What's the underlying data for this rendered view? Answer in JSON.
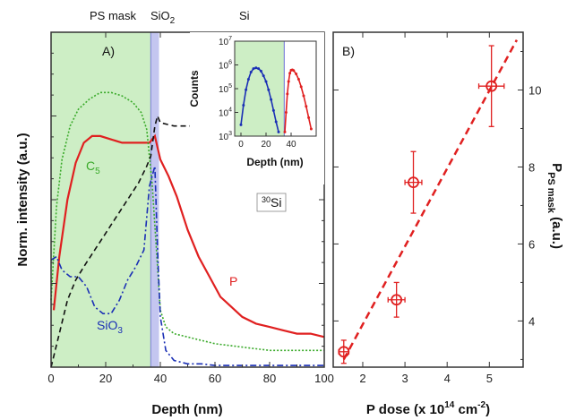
{
  "chart_data": [
    {
      "type": "line",
      "panel_label": "A)",
      "xlabel": "Depth (nm)",
      "ylabel": "Norm. intensity (a.u.)",
      "xlim": [
        0,
        100
      ],
      "x_ticks": [
        "0",
        "20",
        "40",
        "60",
        "80",
        "100"
      ],
      "y_tick_labels_shown": false,
      "regions": {
        "ps_mask": {
          "label": "PS mask",
          "x": [
            0,
            36.5
          ],
          "color": "#cdeec5"
        },
        "sio2": {
          "label": "SiO",
          "sub": "2",
          "x": [
            36.5,
            39.5
          ],
          "color": "#c4c6f0"
        },
        "si": {
          "label": "Si"
        }
      },
      "series": [
        {
          "name": "P",
          "color": "#e02020",
          "style": "solid",
          "x": [
            1,
            3,
            6,
            9,
            12,
            15,
            18,
            22,
            26,
            30,
            33,
            36,
            38,
            40,
            43,
            46,
            50,
            54,
            58,
            62,
            66,
            70,
            75,
            80,
            85,
            90,
            95,
            100
          ],
          "y": [
            0.17,
            0.33,
            0.5,
            0.61,
            0.67,
            0.69,
            0.69,
            0.68,
            0.67,
            0.67,
            0.67,
            0.67,
            0.69,
            0.62,
            0.57,
            0.51,
            0.41,
            0.33,
            0.27,
            0.21,
            0.18,
            0.15,
            0.13,
            0.12,
            0.11,
            0.1,
            0.1,
            0.09
          ]
        },
        {
          "name": "C",
          "sub": "5",
          "color": "#3aaa2a",
          "style": "dotted",
          "x": [
            0,
            2,
            4,
            7,
            10,
            14,
            18,
            22,
            26,
            30,
            33,
            35,
            37,
            39,
            40,
            42,
            45,
            50,
            55,
            60,
            70,
            80,
            90,
            100
          ],
          "y": [
            0.2,
            0.48,
            0.62,
            0.72,
            0.77,
            0.8,
            0.82,
            0.82,
            0.81,
            0.79,
            0.76,
            0.71,
            0.55,
            0.3,
            0.17,
            0.12,
            0.1,
            0.09,
            0.08,
            0.07,
            0.06,
            0.05,
            0.05,
            0.05
          ]
        },
        {
          "name": "SiO",
          "sub": "3",
          "color": "#1a2fb5",
          "style": "dashdot",
          "x": [
            0,
            2,
            4,
            7,
            10,
            13,
            16,
            19,
            22,
            25,
            28,
            31,
            34,
            36,
            38,
            39,
            40,
            42,
            45,
            50,
            55,
            60,
            70,
            80,
            90,
            100
          ],
          "y": [
            0.32,
            0.33,
            0.29,
            0.27,
            0.27,
            0.24,
            0.18,
            0.16,
            0.16,
            0.2,
            0.26,
            0.3,
            0.35,
            0.54,
            0.6,
            0.35,
            0.15,
            0.05,
            0.02,
            0.01,
            0.01,
            0.005,
            0.005,
            0.005,
            0.005,
            0.005
          ]
        },
        {
          "name": "Si",
          "sup": "30",
          "color": "#111111",
          "style": "dashed",
          "x": [
            0,
            3,
            6,
            9,
            12,
            16,
            20,
            24,
            28,
            32,
            35,
            36.5,
            38,
            39,
            40,
            45,
            50,
            60,
            70,
            80,
            90,
            100
          ],
          "y": [
            0.0,
            0.1,
            0.2,
            0.26,
            0.3,
            0.35,
            0.4,
            0.45,
            0.5,
            0.55,
            0.6,
            0.63,
            0.72,
            0.75,
            0.73,
            0.72,
            0.72,
            0.72,
            0.71,
            0.71,
            0.71,
            0.71
          ]
        }
      ],
      "inset": {
        "xlabel": "Depth (nm)",
        "ylabel": "Counts",
        "xlim": [
          -5,
          60
        ],
        "y_log_range": [
          1000,
          10000000
        ],
        "x_ticks": [
          "0",
          "20",
          "40"
        ],
        "y_ticks": [
          {
            "base": "10",
            "exp": "3"
          },
          {
            "base": "10",
            "exp": "4"
          },
          {
            "base": "10",
            "exp": "5"
          },
          {
            "base": "10",
            "exp": "6"
          },
          {
            "base": "10",
            "exp": "7"
          }
        ],
        "series": [
          {
            "color": "#1a2fb5",
            "x": [
              0,
              2,
              4,
              6,
              8,
              10,
              12,
              14,
              16,
              18,
              20,
              22,
              24,
              26,
              28,
              30
            ],
            "y": [
              3000,
              20000,
              90000,
              250000,
              500000,
              700000,
              750000,
              700000,
              550000,
              350000,
              200000,
              90000,
              35000,
              12000,
              4000,
              1500
            ]
          },
          {
            "color": "#e02020",
            "x": [
              35,
              36,
              37,
              38,
              39,
              40,
              41,
              42,
              44,
              46,
              48,
              50,
              52,
              54,
              56
            ],
            "y": [
              1500,
              10000,
              60000,
              200000,
              450000,
              600000,
              620000,
              580000,
              420000,
              250000,
              120000,
              50000,
              18000,
              6000,
              2000
            ]
          }
        ]
      }
    },
    {
      "type": "scatter",
      "panel_label": "B)",
      "xlabel": "P dose (x 10",
      "xlabel_sup": "14",
      "xlabel_unit": " cm",
      "xlabel_unit_sup": "-2",
      "xlabel_end": ")",
      "ylabel": "P",
      "ylabel_sub": "PS mask",
      "ylabel_unit": " (a.u.)",
      "xlim": [
        1.3,
        5.8
      ],
      "ylim": [
        2.8,
        11.5
      ],
      "x_ticks": [
        "2",
        "3",
        "4",
        "5"
      ],
      "y_ticks": [
        "4",
        "6",
        "8",
        "10"
      ],
      "color": "#e02020",
      "points": [
        {
          "x": 1.55,
          "y": 3.2,
          "xerr": 0.12,
          "yerr": 0.3
        },
        {
          "x": 2.8,
          "y": 4.55,
          "xerr": 0.2,
          "yerr": 0.45
        },
        {
          "x": 3.2,
          "y": 7.6,
          "xerr": 0.2,
          "yerr": 0.8
        },
        {
          "x": 5.05,
          "y": 10.1,
          "xerr": 0.3,
          "yerr": 1.05
        }
      ],
      "fit": {
        "style": "dashed",
        "x": [
          1.55,
          5.65
        ],
        "y": [
          3.0,
          11.3
        ]
      }
    }
  ]
}
